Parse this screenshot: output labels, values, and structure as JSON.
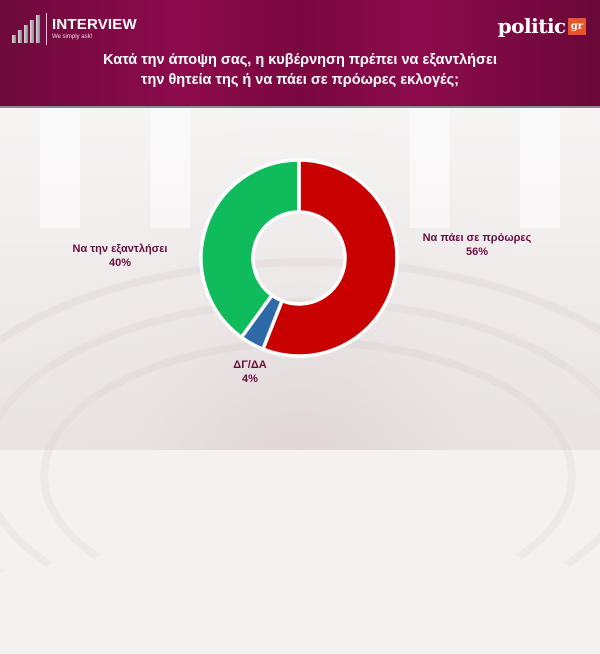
{
  "header": {
    "left_logo": {
      "title": "INTERVIEW",
      "tagline": "We simply ask!",
      "icon": "bar-steps-icon"
    },
    "right_logo": {
      "name": "politic",
      "badge": "gr"
    },
    "title_line1": "Κατά την άποψη σας, η κυβέρνηση πρέπει να εξαντλήσει",
    "title_line2": "την θητεία της ή να πάει σε πρόωρες εκλογές;"
  },
  "colors": {
    "header_bg": "#8c0a4c",
    "label_text": "#6a0c3e",
    "slice_early_elections": "#c80000",
    "slice_dk_na": "#2e6aa8",
    "slice_complete_term": "#0fbb5a"
  },
  "chart_data": {
    "type": "pie",
    "variant": "donut",
    "title": "Κατά την άποψη σας, η κυβέρνηση πρέπει να εξαντλήσει την θητεία της ή να πάει σε πρόωρες εκλογές;",
    "categories": [
      "Να πάει σε  πρόωρες",
      "ΔΓ/ΔΑ",
      "Να την εξαντλήσει"
    ],
    "values": [
      56,
      4,
      40
    ],
    "unit": "%",
    "colors": [
      "#c80000",
      "#2e6aa8",
      "#0fbb5a"
    ],
    "start_angle": "12 o'clock, clockwise",
    "legend": "none (data labels beside slices)"
  },
  "labels": {
    "early": {
      "name": "Να πάει σε  πρόωρες",
      "value": "56%"
    },
    "dk": {
      "name": "ΔΓ/ΔΑ",
      "value": "4%"
    },
    "complete": {
      "name": "Να την εξαντλήσει",
      "value": "40%"
    }
  }
}
